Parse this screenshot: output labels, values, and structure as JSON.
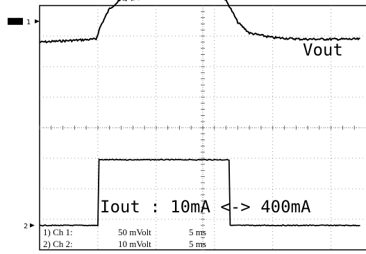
{
  "chart_data": {
    "type": "line",
    "grid": true,
    "x_divisions": 10,
    "y_divisions": 8,
    "series": [
      {
        "name": "Vout",
        "label": "Vout",
        "marker": "1",
        "points": [
          [
            0,
            2.8
          ],
          [
            0.97,
            2.9
          ],
          [
            1.04,
            3.3
          ],
          [
            1.2,
            3.9
          ],
          [
            1.4,
            4.2
          ],
          [
            2.0,
            4.25
          ],
          [
            2.8,
            4.3
          ],
          [
            3.15,
            4.3
          ],
          [
            3.25,
            4.0
          ],
          [
            3.4,
            3.45
          ],
          [
            3.6,
            3.1
          ],
          [
            4.0,
            2.95
          ],
          [
            4.5,
            2.9
          ],
          [
            5.5,
            2.9
          ]
        ]
      },
      {
        "name": "Iout",
        "label": "Iout : 10mA <-> 400mA",
        "marker": "2",
        "points": [
          [
            0,
            -3.2
          ],
          [
            1.0,
            -3.2
          ],
          [
            1.02,
            -1.05
          ],
          [
            3.25,
            -1.05
          ],
          [
            3.27,
            -3.2
          ],
          [
            5.5,
            -3.2
          ]
        ]
      }
    ],
    "channel_info": [
      {
        "id": "1) Ch 1:",
        "scale": "50 mVolt",
        "time": "5 ms"
      },
      {
        "id": "2) Ch 2:",
        "scale": "10 mVolt",
        "time": "5 ms"
      }
    ]
  }
}
